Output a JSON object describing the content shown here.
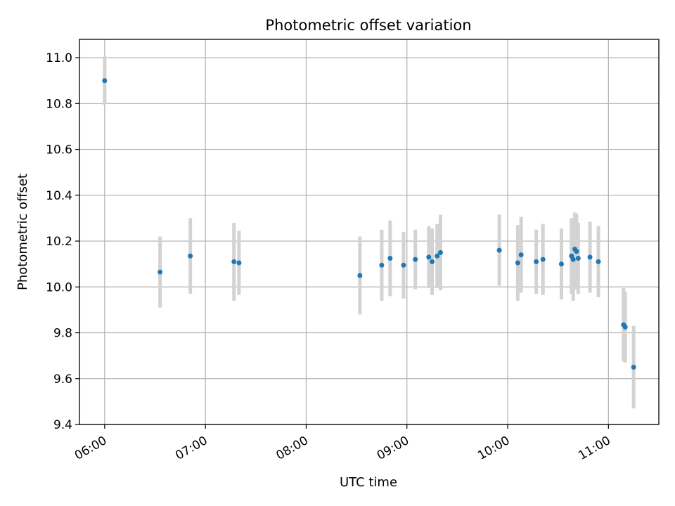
{
  "chart_data": {
    "type": "scatter",
    "title": "Photometric offset variation",
    "xlabel": "UTC time",
    "ylabel": "Photometric offset",
    "x_format": "HH:MM",
    "xlim": [
      "05:45",
      "11:30"
    ],
    "ylim": [
      9.4,
      11.08
    ],
    "x_ticks": [
      "06:00",
      "07:00",
      "08:00",
      "09:00",
      "10:00",
      "11:00"
    ],
    "y_ticks": [
      "9.4",
      "9.6",
      "9.8",
      "10.0",
      "10.2",
      "10.4",
      "10.6",
      "10.8",
      "11.0"
    ],
    "grid": true,
    "colors": {
      "points": "#1f77b4",
      "error_bars": "#d3d3d3",
      "grid": "#b0b0b0"
    },
    "series": [
      {
        "points": [
          {
            "x": "06:00",
            "y": 10.9,
            "err": 0.105
          },
          {
            "x": "06:33",
            "y": 10.065,
            "err": 0.155
          },
          {
            "x": "06:51",
            "y": 10.135,
            "err": 0.165
          },
          {
            "x": "07:17",
            "y": 10.11,
            "err": 0.17
          },
          {
            "x": "07:20",
            "y": 10.105,
            "err": 0.14
          },
          {
            "x": "08:32",
            "y": 10.05,
            "err": 0.17
          },
          {
            "x": "08:45",
            "y": 10.095,
            "err": 0.155
          },
          {
            "x": "08:50",
            "y": 10.125,
            "err": 0.165
          },
          {
            "x": "08:58",
            "y": 10.095,
            "err": 0.145
          },
          {
            "x": "09:05",
            "y": 10.12,
            "err": 0.13
          },
          {
            "x": "09:13",
            "y": 10.13,
            "err": 0.135
          },
          {
            "x": "09:15",
            "y": 10.11,
            "err": 0.145
          },
          {
            "x": "09:18",
            "y": 10.135,
            "err": 0.14
          },
          {
            "x": "09:20",
            "y": 10.15,
            "err": 0.165
          },
          {
            "x": "09:55",
            "y": 10.16,
            "err": 0.155
          },
          {
            "x": "10:06",
            "y": 10.105,
            "err": 0.165
          },
          {
            "x": "10:08",
            "y": 10.14,
            "err": 0.165
          },
          {
            "x": "10:17",
            "y": 10.11,
            "err": 0.14
          },
          {
            "x": "10:21",
            "y": 10.12,
            "err": 0.155
          },
          {
            "x": "10:32",
            "y": 10.1,
            "err": 0.155
          },
          {
            "x": "10:38",
            "y": 10.135,
            "err": 0.165
          },
          {
            "x": "10:39",
            "y": 10.12,
            "err": 0.18
          },
          {
            "x": "10:40",
            "y": 10.165,
            "err": 0.16
          },
          {
            "x": "10:41",
            "y": 10.155,
            "err": 0.165
          },
          {
            "x": "10:42",
            "y": 10.125,
            "err": 0.155
          },
          {
            "x": "10:49",
            "y": 10.13,
            "err": 0.155
          },
          {
            "x": "10:54",
            "y": 10.11,
            "err": 0.155
          },
          {
            "x": "11:09",
            "y": 9.835,
            "err": 0.16
          },
          {
            "x": "11:10",
            "y": 9.825,
            "err": 0.155
          },
          {
            "x": "11:15",
            "y": 9.65,
            "err": 0.18
          }
        ]
      }
    ]
  }
}
